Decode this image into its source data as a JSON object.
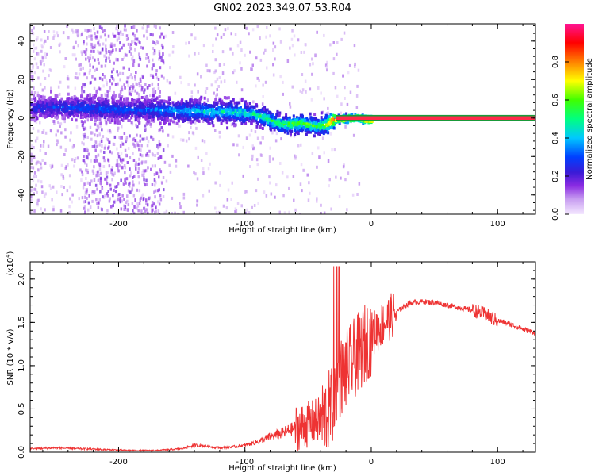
{
  "figure": {
    "title": "GN02.2023.349.07.53.R04"
  },
  "chart_data": [
    {
      "type": "heatmap",
      "name": "spectrogram",
      "xlabel": "Height of straight line (km)",
      "ylabel": "Frequency (Hz)",
      "xlim": [
        -270,
        130
      ],
      "ylim": [
        -50,
        49
      ],
      "x_ticks": [
        "-200",
        "-100",
        "0",
        "100"
      ],
      "y_ticks": [
        "40",
        "20",
        "0",
        "-20",
        "-40"
      ],
      "colorbar": {
        "label": "Normalized spectral amplitude",
        "range": [
          0,
          1
        ],
        "ticks": [
          "0.0",
          "0.2",
          "0.4",
          "0.6",
          "0.8"
        ],
        "colormap": [
          "#f4e8ff",
          "#c79cf0",
          "#8a2be2",
          "#3a1bd6",
          "#0040ff",
          "#00c8ff",
          "#00ff80",
          "#40ff00",
          "#ffff00",
          "#ff8000",
          "#ff0000",
          "#ff1493"
        ]
      },
      "ridge": [
        {
          "x": -270,
          "f": 6.0,
          "a": 0.3
        },
        {
          "x": -250,
          "f": 6.5,
          "a": 0.32
        },
        {
          "x": -230,
          "f": 6.0,
          "a": 0.34
        },
        {
          "x": -210,
          "f": 5.5,
          "a": 0.35
        },
        {
          "x": -190,
          "f": 5.0,
          "a": 0.33
        },
        {
          "x": -170,
          "f": 5.0,
          "a": 0.38
        },
        {
          "x": -150,
          "f": 4.5,
          "a": 0.42
        },
        {
          "x": -130,
          "f": 4.0,
          "a": 0.45
        },
        {
          "x": -110,
          "f": 4.0,
          "a": 0.48
        },
        {
          "x": -95,
          "f": 3.0,
          "a": 0.5
        },
        {
          "x": -85,
          "f": 1.0,
          "a": 0.55
        },
        {
          "x": -75,
          "f": -2.0,
          "a": 0.55
        },
        {
          "x": -65,
          "f": -2.5,
          "a": 0.58
        },
        {
          "x": -55,
          "f": -2.0,
          "a": 0.6
        },
        {
          "x": -45,
          "f": -3.5,
          "a": 0.58
        },
        {
          "x": -38,
          "f": -3.0,
          "a": 0.62
        },
        {
          "x": -30,
          "f": 0.0,
          "a": 0.85
        },
        {
          "x": -20,
          "f": 0.5,
          "a": 0.9
        },
        {
          "x": -12,
          "f": 1.0,
          "a": 0.88
        },
        {
          "x": -5,
          "f": 0.0,
          "a": 0.95
        },
        {
          "x": 0,
          "f": 0.0,
          "a": 0.97
        },
        {
          "x": 130,
          "f": 0.0,
          "a": 0.97
        }
      ]
    },
    {
      "type": "line",
      "name": "snr",
      "xlabel": "Height of straight line (km)",
      "ylabel": "SNR (10 * v/v)",
      "y_multiplier": "(x10",
      "y_multiplier_exp": "4",
      "xlim": [
        -270,
        130
      ],
      "ylim": [
        0,
        2.2
      ],
      "x_ticks": [
        "-200",
        "-100",
        "0",
        "100"
      ],
      "y_ticks": [
        "0.0",
        "0.5",
        "1.0",
        "1.5",
        "2.0"
      ],
      "series": [
        {
          "color": "#ee3333",
          "x": [
            -270,
            -250,
            -230,
            -210,
            -190,
            -170,
            -150,
            -140,
            -130,
            -120,
            -110,
            -100,
            -90,
            -80,
            -70,
            -60,
            -50,
            -40,
            -35,
            -30,
            -27,
            -25,
            -20,
            -15,
            -10,
            -5,
            0,
            10,
            20,
            30,
            40,
            50,
            60,
            70,
            80,
            90,
            95,
            100,
            110,
            120,
            130
          ],
          "values": [
            0.04,
            0.05,
            0.04,
            0.03,
            0.02,
            0.02,
            0.04,
            0.08,
            0.07,
            0.05,
            0.06,
            0.08,
            0.12,
            0.18,
            0.22,
            0.28,
            0.32,
            0.38,
            0.45,
            0.55,
            0.72,
            0.85,
            0.95,
            1.05,
            1.15,
            1.25,
            1.35,
            1.5,
            1.62,
            1.72,
            1.74,
            1.73,
            1.7,
            1.67,
            1.64,
            1.6,
            1.55,
            1.52,
            1.48,
            1.42,
            1.38
          ]
        }
      ]
    }
  ]
}
